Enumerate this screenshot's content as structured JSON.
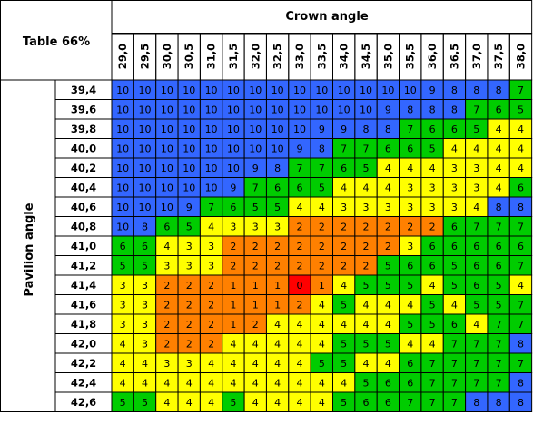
{
  "chart_data": {
    "type": "heatmap",
    "corner_label": "Table 66%",
    "xlabel": "Crown angle",
    "ylabel": "Pavilion angle",
    "x": [
      "29,0",
      "29,5",
      "30,0",
      "30,5",
      "31,0",
      "31,5",
      "32,0",
      "32,5",
      "33,0",
      "33,5",
      "34,0",
      "34,5",
      "35,0",
      "35,5",
      "36,0",
      "36,5",
      "37,0",
      "37,5",
      "38,0"
    ],
    "y": [
      "39,4",
      "39,6",
      "39,8",
      "40,0",
      "40,2",
      "40,4",
      "40,6",
      "40,8",
      "41,0",
      "41,2",
      "41,4",
      "41,6",
      "41,8",
      "42,0",
      "42,2",
      "42,4",
      "42,6"
    ],
    "values": [
      [
        10,
        10,
        10,
        10,
        10,
        10,
        10,
        10,
        10,
        10,
        10,
        10,
        10,
        10,
        9,
        8,
        8,
        8,
        7
      ],
      [
        10,
        10,
        10,
        10,
        10,
        10,
        10,
        10,
        10,
        10,
        10,
        10,
        9,
        8,
        8,
        8,
        7,
        6,
        5
      ],
      [
        10,
        10,
        10,
        10,
        10,
        10,
        10,
        10,
        10,
        9,
        9,
        8,
        8,
        7,
        6,
        6,
        5,
        4,
        4
      ],
      [
        10,
        10,
        10,
        10,
        10,
        10,
        10,
        10,
        9,
        8,
        7,
        7,
        6,
        6,
        5,
        4,
        4,
        4,
        4
      ],
      [
        10,
        10,
        10,
        10,
        10,
        10,
        9,
        8,
        7,
        7,
        6,
        5,
        4,
        4,
        4,
        3,
        3,
        4,
        4
      ],
      [
        10,
        10,
        10,
        10,
        10,
        9,
        7,
        6,
        6,
        5,
        4,
        4,
        4,
        3,
        3,
        3,
        3,
        4,
        6
      ],
      [
        10,
        10,
        10,
        9,
        7,
        6,
        5,
        5,
        4,
        4,
        3,
        3,
        3,
        3,
        3,
        3,
        4,
        8,
        8
      ],
      [
        10,
        8,
        6,
        5,
        4,
        3,
        3,
        3,
        2,
        2,
        2,
        2,
        2,
        2,
        2,
        6,
        7,
        7,
        7
      ],
      [
        6,
        6,
        4,
        3,
        3,
        2,
        2,
        2,
        2,
        2,
        2,
        2,
        2,
        3,
        6,
        6,
        6,
        6,
        6
      ],
      [
        5,
        5,
        3,
        3,
        3,
        2,
        2,
        2,
        2,
        2,
        2,
        2,
        5,
        6,
        6,
        5,
        6,
        6,
        7
      ],
      [
        3,
        3,
        2,
        2,
        2,
        1,
        1,
        1,
        0,
        1,
        4,
        5,
        5,
        5,
        4,
        5,
        6,
        5,
        4
      ],
      [
        3,
        3,
        2,
        2,
        2,
        1,
        1,
        1,
        2,
        4,
        5,
        4,
        4,
        4,
        5,
        4,
        5,
        5,
        7
      ],
      [
        3,
        3,
        2,
        2,
        2,
        1,
        2,
        4,
        4,
        4,
        4,
        4,
        4,
        5,
        5,
        6,
        4,
        7,
        7
      ],
      [
        4,
        3,
        2,
        2,
        2,
        4,
        4,
        4,
        4,
        4,
        5,
        5,
        5,
        4,
        4,
        7,
        7,
        7,
        8
      ],
      [
        4,
        4,
        3,
        3,
        4,
        4,
        4,
        4,
        4,
        5,
        5,
        4,
        4,
        6,
        7,
        7,
        7,
        7,
        7
      ],
      [
        4,
        4,
        4,
        4,
        4,
        4,
        4,
        4,
        4,
        4,
        4,
        5,
        6,
        6,
        7,
        7,
        7,
        7,
        8
      ],
      [
        5,
        5,
        4,
        4,
        4,
        5,
        4,
        4,
        4,
        4,
        5,
        6,
        6,
        7,
        7,
        7,
        8,
        8,
        8
      ]
    ],
    "color_scale": {
      "0": "#ff0000",
      "1": "#ff8000",
      "2": "#ff8000",
      "3": "#ffff00",
      "4": "#ffff00",
      "5": "#00cc00",
      "6": "#00cc00",
      "7": "#00cc00",
      "8": "#3366ff",
      "9": "#3366ff",
      "10": "#3366ff"
    }
  }
}
